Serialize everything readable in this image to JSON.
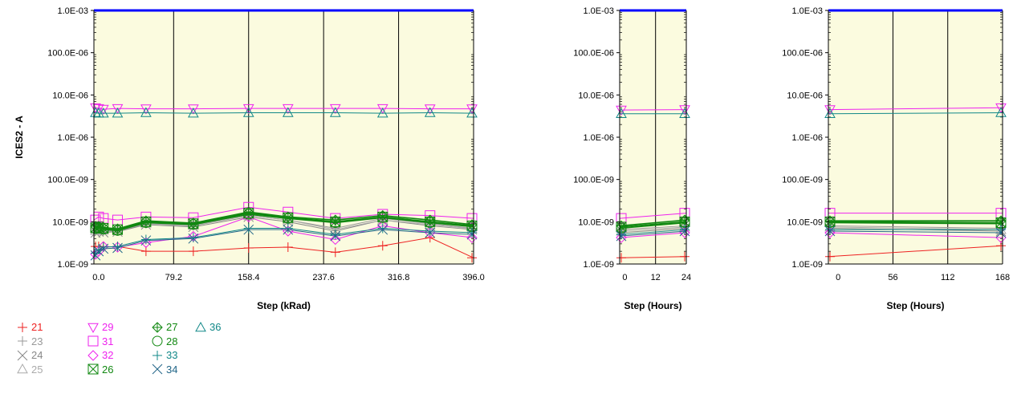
{
  "chart_data": [
    {
      "type": "line",
      "ylabel": "ICES2 - A",
      "xlabel": "Step (kRad)",
      "y_scale": "log",
      "ylim": [
        1e-09,
        0.001
      ],
      "y_ticks": [
        "1.0E-03",
        "100.0E-06",
        "10.0E-06",
        "1.0E-06",
        "100.0E-09",
        "10.0E-09",
        "1.0E-09"
      ],
      "xlim": [
        -5,
        396
      ],
      "x_ticks": [
        "0.0",
        "79.2",
        "158.4",
        "237.6",
        "316.8",
        "396.0"
      ],
      "x_tick_values": [
        0,
        79.2,
        158.4,
        237.6,
        316.8,
        396
      ],
      "gridlines": "vertical",
      "background": "#fbfbdf",
      "limit_line": {
        "value": 0.001,
        "color": "#0000ff"
      },
      "x": [
        -5,
        0,
        5,
        20,
        50,
        100,
        158.4,
        200,
        250,
        300,
        350,
        396
      ],
      "series": [
        {
          "name": "21",
          "values": [
            2.6e-09,
            2.6e-09,
            2.5e-09,
            2.6e-09,
            2e-09,
            2e-09,
            2.4e-09,
            2.5e-09,
            1.9e-09,
            2.7e-09,
            4.2e-09,
            1.4e-09
          ]
        },
        {
          "name": "23",
          "values": [
            6e-09,
            6.2e-09,
            6e-09,
            6e-09,
            9e-09,
            8e-09,
            1.4e-08,
            1.1e-08,
            7e-09,
            1.2e-08,
            9e-09,
            7e-09
          ]
        },
        {
          "name": "24",
          "values": [
            5.5e-09,
            5.8e-09,
            5.6e-09,
            5.8e-09,
            8.5e-09,
            7.5e-09,
            1.3e-08,
            1e-08,
            6e-09,
            1.1e-08,
            8e-09,
            6.5e-09
          ]
        },
        {
          "name": "25",
          "values": [
            6.2e-09,
            6.5e-09,
            6.3e-09,
            6.2e-09,
            9.2e-09,
            8.2e-09,
            1.4e-08,
            1.1e-08,
            6.5e-09,
            1.1e-08,
            8.5e-09,
            6.8e-09
          ]
        },
        {
          "name": "29",
          "values": [
            5e-06,
            4.8e-06,
            4.6e-06,
            4.8e-06,
            4.7e-06,
            4.7e-06,
            4.8e-06,
            4.8e-06,
            4.8e-06,
            4.8e-06,
            4.7e-06,
            4.7e-06
          ]
        },
        {
          "name": "31",
          "values": [
            1.1e-08,
            1.3e-08,
            1.2e-08,
            1.1e-08,
            1.3e-08,
            1.25e-08,
            2.2e-08,
            1.7e-08,
            1.2e-08,
            1.5e-08,
            1.4e-08,
            1.2e-08
          ]
        },
        {
          "name": "32",
          "values": [
            1.7e-09,
            2e-09,
            2.6e-09,
            2.5e-09,
            3.2e-09,
            4.5e-09,
            1.3e-08,
            6e-09,
            3.8e-09,
            8e-09,
            5.5e-09,
            4.2e-09
          ]
        },
        {
          "name": "26",
          "values": [
            7.2e-09,
            7.5e-09,
            7e-09,
            6.5e-09,
            1e-08,
            9e-09,
            1.6e-08,
            1.25e-08,
            1e-08,
            1.3e-08,
            1e-08,
            8e-09
          ]
        },
        {
          "name": "27",
          "values": [
            7.8e-09,
            7.8e-09,
            7.3e-09,
            6.8e-09,
            1.05e-08,
            9.3e-09,
            1.7e-08,
            1.3e-08,
            1.1e-08,
            1.4e-08,
            1.1e-08,
            8.5e-09
          ]
        },
        {
          "name": "28",
          "values": [
            6.8e-09,
            7e-09,
            6.6e-09,
            6.2e-09,
            9.5e-09,
            8.6e-09,
            1.5e-08,
            1.2e-08,
            9.5e-09,
            1.25e-08,
            9.5e-09,
            7.6e-09
          ]
        },
        {
          "name": "33",
          "values": [
            1.8e-09,
            2.2e-09,
            2.5e-09,
            2.6e-09,
            3.8e-09,
            4.2e-09,
            7e-09,
            7e-09,
            5e-09,
            7e-09,
            6e-09,
            5.5e-09
          ]
        },
        {
          "name": "34",
          "values": [
            1.6e-09,
            2e-09,
            2.3e-09,
            2.4e-09,
            3.6e-09,
            4e-09,
            6.5e-09,
            6.5e-09,
            4.6e-09,
            6.5e-09,
            5.5e-09,
            5e-09
          ]
        },
        {
          "name": "36",
          "values": [
            3.8e-06,
            3.7e-06,
            3.7e-06,
            3.7e-06,
            3.8e-06,
            3.7e-06,
            3.8e-06,
            3.8e-06,
            3.8e-06,
            3.7e-06,
            3.8e-06,
            3.7e-06
          ]
        }
      ]
    },
    {
      "type": "line",
      "xlabel": "Step (Hours)",
      "y_scale": "log",
      "ylim": [
        1e-09,
        0.001
      ],
      "y_ticks": [
        "1.0E-03",
        "100.0E-06",
        "10.0E-06",
        "1.0E-06",
        "100.0E-09",
        "10.0E-09",
        "1.0E-09"
      ],
      "xlim": [
        -2,
        24
      ],
      "x_ticks": [
        "0",
        "12",
        "24"
      ],
      "x_tick_values": [
        0,
        12,
        24
      ],
      "gridlines": "vertical",
      "background": "#fbfbdf",
      "limit_line": {
        "value": 0.001,
        "color": "#0000ff"
      },
      "x": [
        -2,
        24
      ],
      "series": [
        {
          "name": "21",
          "values": [
            1.4e-09,
            1.5e-09
          ]
        },
        {
          "name": "23",
          "values": [
            6.5e-09,
            8e-09
          ]
        },
        {
          "name": "24",
          "values": [
            5.5e-09,
            7e-09
          ]
        },
        {
          "name": "25",
          "values": [
            6e-09,
            7.5e-09
          ]
        },
        {
          "name": "29",
          "values": [
            4.4e-06,
            4.5e-06
          ]
        },
        {
          "name": "31",
          "values": [
            1.2e-08,
            1.6e-08
          ]
        },
        {
          "name": "32",
          "values": [
            4.2e-09,
            5.5e-09
          ]
        },
        {
          "name": "26",
          "values": [
            7.5e-09,
            1e-08
          ]
        },
        {
          "name": "27",
          "values": [
            8e-09,
            1.1e-08
          ]
        },
        {
          "name": "28",
          "values": [
            7e-09,
            9.5e-09
          ]
        },
        {
          "name": "33",
          "values": [
            5e-09,
            6.5e-09
          ]
        },
        {
          "name": "34",
          "values": [
            4.6e-09,
            6e-09
          ]
        },
        {
          "name": "36",
          "values": [
            3.6e-06,
            3.6e-06
          ]
        }
      ]
    },
    {
      "type": "line",
      "xlabel": "Step (Hours)",
      "y_scale": "log",
      "ylim": [
        1e-09,
        0.001
      ],
      "y_ticks": [
        "1.0E-03",
        "100.0E-06",
        "10.0E-06",
        "1.0E-06",
        "100.0E-09",
        "10.0E-09",
        "1.0E-09"
      ],
      "xlim": [
        -10,
        168
      ],
      "x_ticks": [
        "0",
        "56",
        "112",
        "168"
      ],
      "x_tick_values": [
        0,
        56,
        112,
        168
      ],
      "gridlines": "vertical",
      "background": "#fbfbdf",
      "limit_line": {
        "value": 0.001,
        "color": "#0000ff"
      },
      "x": [
        -10,
        168
      ],
      "series": [
        {
          "name": "21",
          "values": [
            1.5e-09,
            2.7e-09
          ]
        },
        {
          "name": "23",
          "values": [
            8e-09,
            7e-09
          ]
        },
        {
          "name": "24",
          "values": [
            7e-09,
            6e-09
          ]
        },
        {
          "name": "25",
          "values": [
            7.5e-09,
            6.5e-09
          ]
        },
        {
          "name": "29",
          "values": [
            4.5e-06,
            5e-06
          ]
        },
        {
          "name": "31",
          "values": [
            1.6e-08,
            1.6e-08
          ]
        },
        {
          "name": "32",
          "values": [
            5.5e-09,
            4.2e-09
          ]
        },
        {
          "name": "26",
          "values": [
            1e-08,
            9.5e-09
          ]
        },
        {
          "name": "27",
          "values": [
            1.05e-08,
            1.05e-08
          ]
        },
        {
          "name": "28",
          "values": [
            9.5e-09,
            9e-09
          ]
        },
        {
          "name": "33",
          "values": [
            6.5e-09,
            6.5e-09
          ]
        },
        {
          "name": "34",
          "values": [
            6e-09,
            5.5e-09
          ]
        },
        {
          "name": "36",
          "values": [
            3.6e-06,
            3.8e-06
          ]
        }
      ]
    }
  ],
  "series_styles": {
    "21": {
      "color": "#ee2222",
      "marker": "plus"
    },
    "23": {
      "color": "#999999",
      "marker": "plus"
    },
    "24": {
      "color": "#888888",
      "marker": "x"
    },
    "25": {
      "color": "#aaaaaa",
      "marker": "triangle-up"
    },
    "29": {
      "color": "#ee22ee",
      "marker": "triangle-down"
    },
    "31": {
      "color": "#ee22ee",
      "marker": "square"
    },
    "32": {
      "color": "#ee22ee",
      "marker": "diamond"
    },
    "26": {
      "color": "#118811",
      "marker": "square-x"
    },
    "27": {
      "color": "#118811",
      "marker": "diamond-plus"
    },
    "28": {
      "color": "#118811",
      "marker": "circle"
    },
    "33": {
      "color": "#118888",
      "marker": "plus"
    },
    "34": {
      "color": "#226688",
      "marker": "x"
    },
    "36": {
      "color": "#118888",
      "marker": "triangle-up"
    }
  },
  "legend": {
    "placement": "bottom-left",
    "columns": [
      [
        "21",
        "23",
        "24",
        "25"
      ],
      [
        "29",
        "31",
        "32",
        "26"
      ],
      [
        "27",
        "28",
        "33",
        "34"
      ],
      [
        "36"
      ]
    ]
  }
}
